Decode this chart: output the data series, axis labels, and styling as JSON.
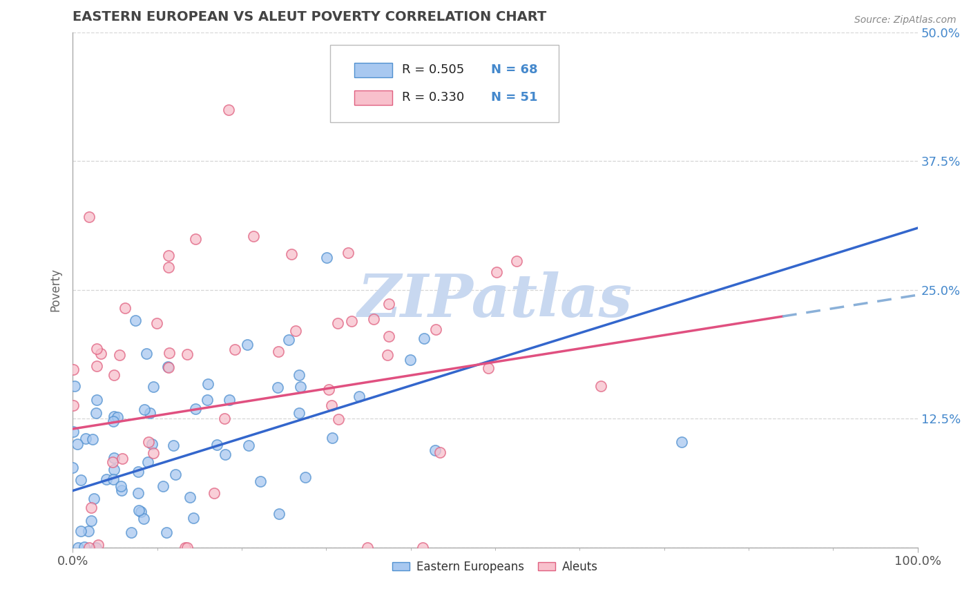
{
  "title": "EASTERN EUROPEAN VS ALEUT POVERTY CORRELATION CHART",
  "source": "Source: ZipAtlas.com",
  "ylabel": "Poverty",
  "xlim": [
    0,
    1.0
  ],
  "ylim": [
    0,
    0.5
  ],
  "yticks": [
    0.0,
    0.125,
    0.25,
    0.375,
    0.5
  ],
  "yticklabels_right": [
    "",
    "12.5%",
    "25.0%",
    "37.5%",
    "50.0%"
  ],
  "series1_fill": "#A8C8F0",
  "series1_edge": "#5090D0",
  "series2_fill": "#F8C0CC",
  "series2_edge": "#E06080",
  "trend1_color": "#3366CC",
  "trend2_color": "#E05080",
  "trend_dash_color": "#8AB0D8",
  "legend_R1": "R = 0.505",
  "legend_N1": "N = 68",
  "legend_R2": "R = 0.330",
  "legend_N2": "N = 51",
  "watermark": "ZIPatlas",
  "watermark_color": "#C8D8F0",
  "bg_color": "#FFFFFF",
  "grid_color": "#CCCCCC",
  "title_color": "#444444",
  "axis_color": "#AAAAAA",
  "tick_color_blue": "#4488CC",
  "source_color": "#888888",
  "seed": 42,
  "n1": 68,
  "n2": 51,
  "trend1_x0": 0.0,
  "trend1_y0": 0.055,
  "trend1_x1": 1.0,
  "trend1_y1": 0.31,
  "trend2_x0": 0.0,
  "trend2_y0": 0.115,
  "trend2_x1": 1.0,
  "trend2_y1": 0.245,
  "trend2_solid_end": 0.84,
  "dot_size": 120,
  "dot_alpha": 0.75,
  "dot_linewidth": 1.2
}
